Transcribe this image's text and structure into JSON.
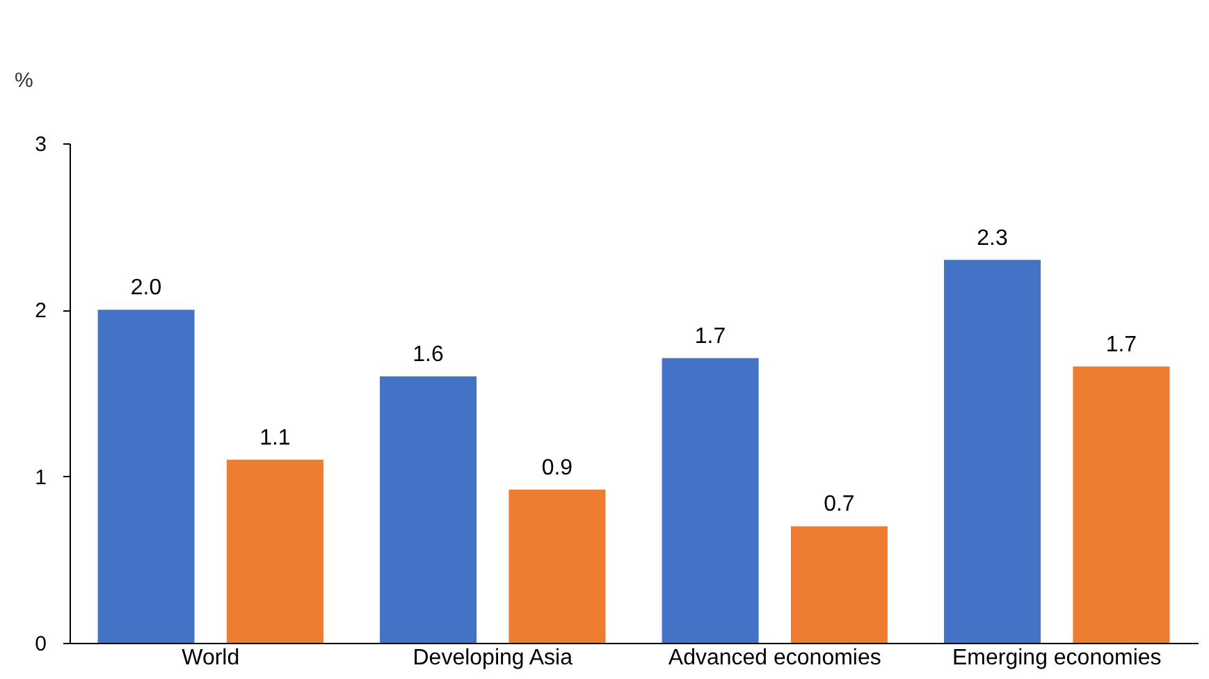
{
  "chart_data": {
    "type": "bar",
    "ylabel": "%",
    "categories": [
      "World",
      "Developing Asia",
      "Advanced economies",
      "Emerging economies"
    ],
    "series": [
      {
        "color": "#4472c4",
        "values": [
          2.0,
          1.6,
          1.71,
          2.3
        ],
        "value_labels": [
          "2.0",
          "1.6",
          "1.7",
          "2.3"
        ]
      },
      {
        "color": "#ed7d31",
        "values": [
          1.1,
          0.92,
          0.7,
          1.66
        ],
        "value_labels": [
          "1.1",
          "0.9",
          "0.7",
          "1.7"
        ]
      }
    ],
    "ylim": [
      0,
      3
    ],
    "yticks": [
      0,
      1,
      2,
      3
    ],
    "grid": false,
    "legend": false
  }
}
